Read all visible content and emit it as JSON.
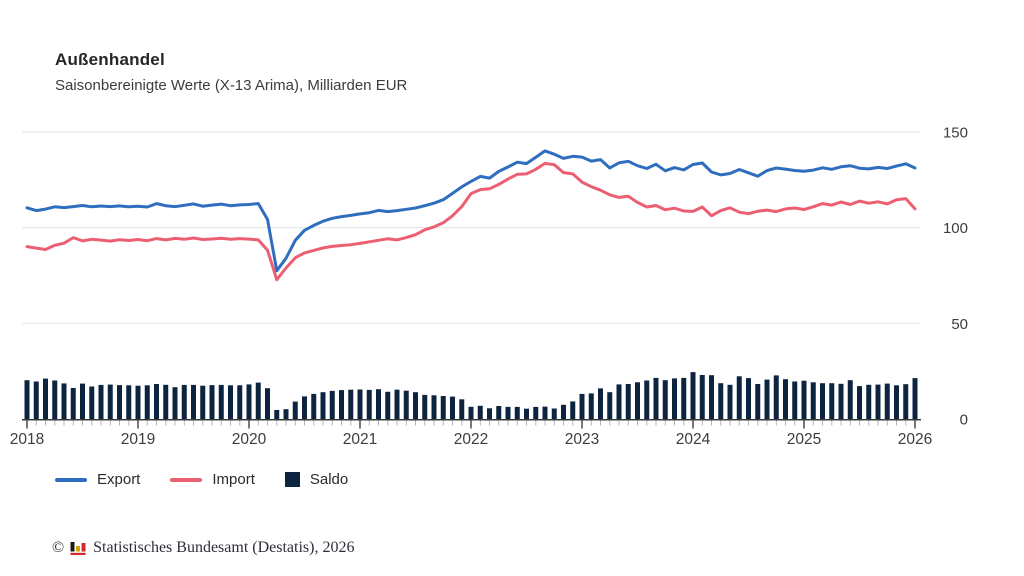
{
  "header": {
    "title": "Außenhandel",
    "subtitle": "Saisonbereinigte Werte (X-13 Arima), Milliarden EUR"
  },
  "legend": [
    {
      "label": "Export",
      "swatch": "line",
      "color": "#2f6ebe"
    },
    {
      "label": "Import",
      "swatch": "line",
      "color": "#ec5f72"
    },
    {
      "label": "Saldo",
      "swatch": "square",
      "color": "#0c2440"
    }
  ],
  "footer": {
    "copyright": "©",
    "logo_icon": "destatis-bar-chart-logo",
    "text": "Statistisches Bundesamt (Destatis), 2026"
  },
  "chart_data": {
    "type": "line+bar",
    "title": "Außenhandel",
    "subtitle": "Saisonbereinigte Werte (X-13 Arima), Milliarden EUR",
    "unit": "Milliarden EUR",
    "frequency": "monthly",
    "x_start": "2018-01",
    "x_end": "2026-01",
    "x_labels": [
      "2018",
      "2019",
      "2020",
      "2021",
      "2022",
      "2023",
      "2024",
      "2025",
      "2026"
    ],
    "y_ticks": [
      0,
      50,
      100,
      150
    ],
    "ylim": [
      0,
      150
    ],
    "grid": "horizontal",
    "y_axis_side": "right",
    "legend_position": "bottom-left",
    "series": [
      {
        "name": "Export",
        "type": "line",
        "color": "#2f6ebe",
        "values": [
          110.4,
          108.9,
          109.7,
          110.9,
          110.5,
          111.0,
          111.6,
          110.9,
          111.3,
          111.0,
          111.4,
          110.9,
          111.2,
          110.8,
          112.6,
          111.5,
          111.0,
          111.7,
          112.4,
          111.2,
          111.8,
          112.3,
          111.5,
          111.9,
          112.1,
          112.6,
          104.3,
          77.5,
          84.0,
          93.4,
          98.6,
          101.2,
          103.4,
          104.9,
          105.8,
          106.4,
          107.2,
          107.8,
          109.0,
          108.4,
          108.9,
          109.6,
          110.3,
          111.5,
          112.8,
          114.6,
          117.9,
          121.3,
          124.2,
          126.8,
          125.9,
          129.4,
          131.7,
          134.2,
          133.5,
          136.8,
          140.1,
          138.4,
          136.2,
          137.3,
          136.9,
          134.8,
          135.6,
          131.2,
          133.9,
          134.7,
          132.4,
          130.9,
          133.1,
          129.7,
          131.4,
          130.2,
          133.0,
          133.8,
          129.1,
          127.6,
          128.3,
          130.4,
          128.7,
          126.9,
          129.8,
          131.2,
          130.6,
          129.9,
          129.5,
          130.1,
          131.3,
          130.5,
          131.8,
          132.4,
          131.1,
          130.7,
          131.5,
          130.9,
          132.2,
          133.4,
          131.2
        ]
      },
      {
        "name": "Import",
        "type": "line",
        "color": "#ec5f72",
        "values": [
          90.1,
          89.3,
          88.6,
          90.8,
          91.9,
          94.8,
          93.1,
          93.9,
          93.5,
          93.0,
          93.7,
          93.3,
          93.8,
          93.2,
          94.3,
          93.6,
          94.4,
          93.9,
          94.6,
          93.8,
          94.1,
          94.5,
          93.9,
          94.3,
          94.0,
          93.6,
          88.2,
          72.8,
          78.9,
          84.3,
          86.8,
          88.1,
          89.4,
          90.2,
          90.7,
          91.1,
          91.8,
          92.6,
          93.4,
          94.2,
          93.6,
          94.8,
          96.3,
          98.9,
          100.4,
          102.6,
          106.2,
          111.0,
          117.8,
          119.9,
          120.3,
          122.6,
          125.4,
          127.9,
          128.1,
          130.5,
          133.6,
          132.9,
          128.8,
          128.1,
          123.8,
          121.4,
          119.6,
          117.2,
          115.8,
          116.4,
          113.2,
          110.8,
          111.6,
          109.4,
          110.2,
          108.7,
          108.5,
          110.8,
          106.2,
          108.9,
          110.4,
          108.1,
          107.3,
          108.6,
          109.2,
          108.4,
          109.8,
          110.3,
          109.5,
          110.9,
          112.6,
          111.8,
          113.4,
          112.1,
          113.9,
          112.8,
          113.5,
          112.4,
          114.6,
          115.2,
          109.8
        ]
      },
      {
        "name": "Saldo",
        "type": "bar",
        "color": "#0c2440",
        "values": [
          20.3,
          19.6,
          21.1,
          20.1,
          18.6,
          16.2,
          18.5,
          17.0,
          17.8,
          18.0,
          17.7,
          17.6,
          17.4,
          17.6,
          18.3,
          17.9,
          16.6,
          17.8,
          17.8,
          17.4,
          17.7,
          17.8,
          17.6,
          17.6,
          18.1,
          19.0,
          16.1,
          4.7,
          5.1,
          9.1,
          11.8,
          13.1,
          14.0,
          14.7,
          15.1,
          15.3,
          15.4,
          15.2,
          15.6,
          14.2,
          15.3,
          14.8,
          14.0,
          12.6,
          12.4,
          12.0,
          11.7,
          10.3,
          6.4,
          6.9,
          5.6,
          6.8,
          6.3,
          6.3,
          5.4,
          6.3,
          6.5,
          5.5,
          7.4,
          9.2,
          13.1,
          13.4,
          16.0,
          14.0,
          18.1,
          18.3,
          19.2,
          20.1,
          21.5,
          20.3,
          21.2,
          21.5,
          24.5,
          23.0,
          22.9,
          18.7,
          17.9,
          22.3,
          21.4,
          18.3,
          20.6,
          22.8,
          20.8,
          19.6,
          20.0,
          19.2,
          18.7,
          18.7,
          18.4,
          20.3,
          17.2,
          17.9,
          18.0,
          18.5,
          17.6,
          18.2,
          21.4
        ]
      }
    ]
  }
}
